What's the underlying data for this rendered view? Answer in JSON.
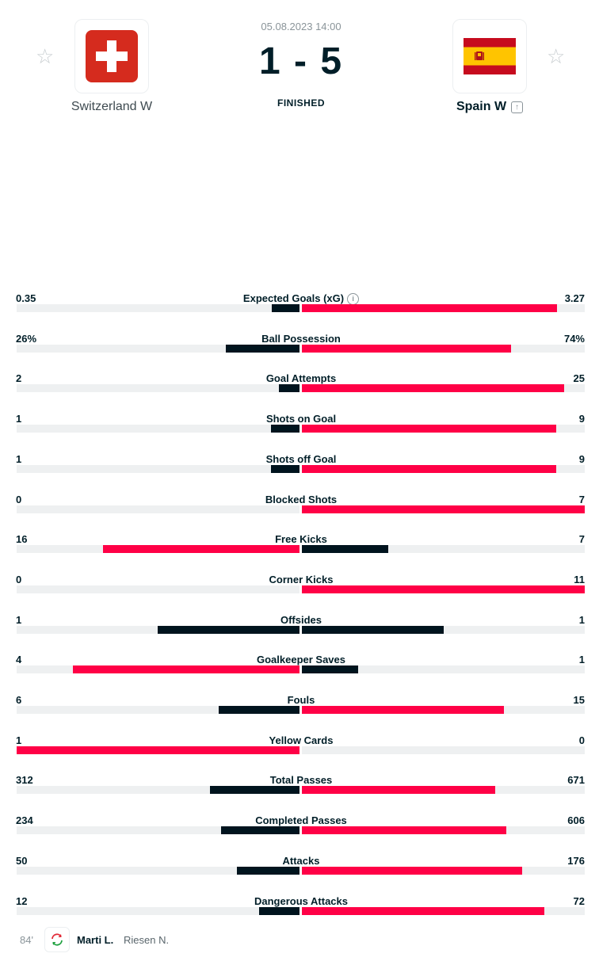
{
  "match": {
    "date_time": "05.08.2023 14:00",
    "score": "1 - 5",
    "status": "FINISHED",
    "home": {
      "name": "Switzerland W",
      "flag": "switzerland-flag"
    },
    "away": {
      "name": "Spain W",
      "flag": "spain-flag"
    }
  },
  "colors": {
    "leader": "#ff0046",
    "trailer": "#00141e",
    "track": "#eef0f1",
    "swiss_red": "#d52b1e",
    "spain_red": "#c60b1e",
    "spain_yellow": "#ffc400"
  },
  "stats": [
    {
      "label": "Expected Goals (xG)",
      "home": "0.35",
      "away": "3.27",
      "home_value": 0.35,
      "away_value": 3.27,
      "info": true
    },
    {
      "label": "Ball Possession",
      "home": "26%",
      "away": "74%",
      "home_value": 26,
      "away_value": 74
    },
    {
      "label": "Goal Attempts",
      "home": "2",
      "away": "25",
      "home_value": 2,
      "away_value": 25
    },
    {
      "label": "Shots on Goal",
      "home": "1",
      "away": "9",
      "home_value": 1,
      "away_value": 9
    },
    {
      "label": "Shots off Goal",
      "home": "1",
      "away": "9",
      "home_value": 1,
      "away_value": 9
    },
    {
      "label": "Blocked Shots",
      "home": "0",
      "away": "7",
      "home_value": 0,
      "away_value": 7
    },
    {
      "label": "Free Kicks",
      "home": "16",
      "away": "7",
      "home_value": 16,
      "away_value": 7
    },
    {
      "label": "Corner Kicks",
      "home": "0",
      "away": "11",
      "home_value": 0,
      "away_value": 11
    },
    {
      "label": "Offsides",
      "home": "1",
      "away": "1",
      "home_value": 1,
      "away_value": 1
    },
    {
      "label": "Goalkeeper Saves",
      "home": "4",
      "away": "1",
      "home_value": 4,
      "away_value": 1
    },
    {
      "label": "Fouls",
      "home": "6",
      "away": "15",
      "home_value": 6,
      "away_value": 15
    },
    {
      "label": "Yellow Cards",
      "home": "1",
      "away": "0",
      "home_value": 1,
      "away_value": 0
    },
    {
      "label": "Total Passes",
      "home": "312",
      "away": "671",
      "home_value": 312,
      "away_value": 671
    },
    {
      "label": "Completed Passes",
      "home": "234",
      "away": "606",
      "home_value": 234,
      "away_value": 606
    },
    {
      "label": "Attacks",
      "home": "50",
      "away": "176",
      "home_value": 50,
      "away_value": 176
    },
    {
      "label": "Dangerous Attacks",
      "home": "12",
      "away": "72",
      "home_value": 12,
      "away_value": 72
    }
  ],
  "event": {
    "minute": "84'",
    "icon": "substitution-icon",
    "player_in": "Marti L.",
    "player_out": "Riesen N."
  }
}
